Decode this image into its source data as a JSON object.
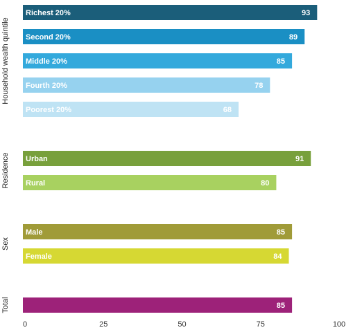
{
  "chart_data": {
    "type": "bar",
    "orientation": "horizontal",
    "xlim": [
      0,
      100
    ],
    "xticks": [
      "0",
      "25",
      "50",
      "75",
      "100"
    ],
    "grid": false,
    "groups": [
      {
        "label": "Household wealth quintile",
        "bars": [
          {
            "label": "Richest 20%",
            "value": 93,
            "color": "#1b5e7a"
          },
          {
            "label": "Second 20%",
            "value": 89,
            "color": "#1a8fc4"
          },
          {
            "label": "Middle 20%",
            "value": 85,
            "color": "#33a9dc"
          },
          {
            "label": "Fourth 20%",
            "value": 78,
            "color": "#96d2ef"
          },
          {
            "label": "Poorest 20%",
            "value": 68,
            "color": "#bfe3f4"
          }
        ]
      },
      {
        "label": "Residence",
        "bars": [
          {
            "label": "Urban",
            "value": 91,
            "color": "#78a03c"
          },
          {
            "label": "Rural",
            "value": 80,
            "color": "#a8d160"
          }
        ]
      },
      {
        "label": "Sex",
        "bars": [
          {
            "label": "Male",
            "value": 85,
            "color": "#a09b38"
          },
          {
            "label": "Female",
            "value": 84,
            "color": "#d6d833"
          }
        ]
      },
      {
        "label": "Total",
        "bars": [
          {
            "label": "",
            "value": 85,
            "color": "#9d2279"
          }
        ]
      }
    ]
  }
}
